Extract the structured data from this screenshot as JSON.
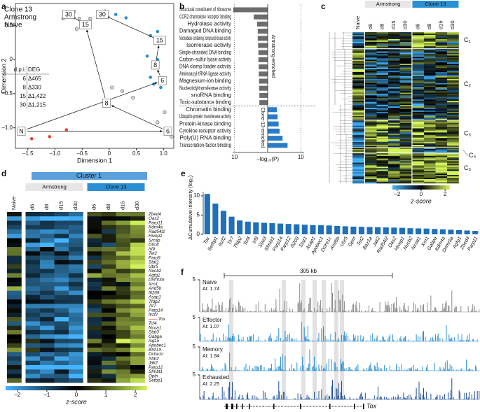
{
  "panel_labels": [
    "a",
    "b",
    "c",
    "d",
    "e",
    "f"
  ],
  "scatter": {
    "type": "scatter",
    "xlabel": "Dimension 1",
    "ylabel": "Dimension 2",
    "xlim": [
      -1.73,
      1.19
    ],
    "ylim": [
      -1.3,
      0.82
    ],
    "xticks": [
      {
        "value": -1.5,
        "label": "–1.5"
      },
      {
        "value": -1,
        "label": "–1.0"
      },
      {
        "value": -0.5,
        "label": "–0.5"
      },
      0,
      0.5,
      {
        "value": 1,
        "label": "1.0"
      }
    ],
    "yticks": [
      {
        "value": -1,
        "label": "–1.0"
      },
      {
        "value": -0.5,
        "label": "–0.5"
      },
      0,
      0.5
    ],
    "series": [
      {
        "name": "Clone 13",
        "color": "#2b8fd4",
        "x": [
          -0.08,
          0.12,
          0.31,
          0.76,
          0.89,
          0.7,
          0.89,
          0.76,
          0.82,
          0.95
        ],
        "values": [
          0.71,
          0.66,
          0.61,
          0.35,
          0.41,
          0.05,
          0.0,
          -0.26,
          -0.36,
          -0.41
        ],
        "centroids": [
          {
            "text": "6",
            "x": 0.98,
            "y": -0.31
          },
          {
            "text": "8",
            "x": 0.85,
            "y": -0.08
          },
          {
            "text": "15",
            "x": 0.93,
            "y": 0.28
          },
          {
            "text": "30",
            "x": -0.13,
            "y": 0.66
          }
        ]
      },
      {
        "name": "Armstrong",
        "color": "#8c8c8c",
        "x": [
          -0.85,
          -0.65,
          -0.55,
          -0.6,
          -0.35,
          0.24,
          0.05,
          0.44,
          1.02,
          1.15,
          0.89
        ],
        "values": [
          0.6,
          0.7,
          0.6,
          0.45,
          0.6,
          -0.46,
          -0.41,
          -0.56,
          -0.77,
          -1.13,
          -0.92
        ],
        "centroids": [
          {
            "text": "6",
            "x": 1.08,
            "y": -1.05
          },
          {
            "text": "8",
            "x": -0.05,
            "y": -0.64
          },
          {
            "text": "15",
            "x": -0.44,
            "y": 0.51
          },
          {
            "text": "30",
            "x": -0.75,
            "y": 0.66
          }
        ]
      },
      {
        "name": "Naive",
        "color": "#e8412c",
        "x": [
          -1.43,
          -1.1,
          -0.79
        ],
        "values": [
          -1.16,
          -1.13,
          -1.03
        ],
        "centroids": [
          {
            "text": "N",
            "x": -1.62,
            "y": -1.05
          }
        ]
      }
    ],
    "dpi_table": {
      "header": [
        "d.p.i.",
        "DEG"
      ],
      "rows": [
        [
          "6",
          "Δ465"
        ],
        [
          "8",
          "Δ330"
        ],
        [
          "15",
          "Δ1,422"
        ],
        [
          "30",
          "Δ1,215"
        ]
      ]
    }
  },
  "go_bars": {
    "type": "bar",
    "xlabel": "−log₁₀(P)",
    "xlim": [
      0,
      11
    ],
    "xticks": [
      10
    ],
    "series": [
      {
        "name": "Armstrong-enriched",
        "color": "#6d6d6d",
        "categories": [
          "Structural constituent of ribosome",
          "CCR2 chemokine receptor binding",
          "Hydrolase activity",
          "Damaged DNA binding",
          "Nucleobase-containing compound kinase activity",
          "Isomerase activity",
          "Single-stranded DNA binding",
          "Carbon–sulfur lyase activity",
          "DNA clamp loader activity",
          "Aminoacyl-tRNA ligase activity",
          "Magnesium-ion binding",
          "Nucleotidyltransferase activity",
          "snoRNA binding",
          "Toxic-substance binding"
        ],
        "values": [
          10.4,
          4.2,
          3.2,
          3.0,
          3.0,
          2.9,
          2.8,
          2.8,
          2.7,
          2.7,
          2.6,
          2.6,
          2.5,
          2.5
        ]
      },
      {
        "name": "Clone-13-enriched",
        "color": "#2a7cc7",
        "categories": [
          "Chromatin binding",
          "Ubiquitin-protein transferase activity",
          "Protein-kinase binding",
          "Cytokine receptor activity",
          "Poly(U) RNA binding",
          "Transcription-factor binding"
        ],
        "values": [
          2.8,
          3.0,
          3.3,
          3.6,
          4.5,
          6.0
        ]
      }
    ],
    "highlight": {
      "series": 1,
      "indices": [
        0,
        5
      ],
      "color": "#e8412c"
    }
  },
  "heatmap_c": {
    "type": "heatmap",
    "columns": [
      "Naive",
      "d6",
      "d8",
      "d15",
      "d30",
      "d6",
      "d8",
      "d15",
      "d30"
    ],
    "column_groups": [
      "Armstrong",
      "Clone 13"
    ],
    "clusters": [
      "C₁",
      "C₂",
      "C₃",
      "C₄",
      "C₅"
    ],
    "colorbar_label": "z-score",
    "clim": [
      -2.4,
      2.4
    ],
    "colorbar_ticks": [
      {
        "value": -2,
        "label": "–2"
      },
      0,
      2
    ]
  },
  "heatmap_d": {
    "type": "heatmap",
    "title": "Cluster 1",
    "columns": [
      "Naive",
      "d6",
      "d8",
      "d15",
      "d30",
      "d6",
      "d8",
      "d15",
      "d30"
    ],
    "column_groups": [
      "Armstrong",
      "Clone 13"
    ],
    "genes": [
      "Zbed4",
      "Oas2",
      "Parp11",
      "Kdm4a",
      "Rad54l2",
      "Hivep1",
      "Srcap",
      "Dtx3l",
      "Irf9",
      "Tet2",
      "Parp9",
      "Stat1",
      "Ubr5",
      "Nucb2",
      "Agfg1",
      "Dnmt3a",
      "Xrn1",
      "Arid5b",
      "Ifi209",
      "Asap1",
      "Tfdp2",
      "Tlr7",
      "Parp14",
      "Ikzf2",
      "Tox",
      "Tcf4",
      "Ncoa1",
      "Stat3",
      "Gabpa",
      "Isg15",
      "Apobec1",
      "Baz1a",
      "Dclre1c",
      "Stat2",
      "Jak2",
      "Parp12",
      "Sfmbt1",
      "Optn",
      "Setbp1"
    ],
    "highlight": {
      "index": 24,
      "color": "#e8412c"
    },
    "colorbar_label": "z-score",
    "clim": [
      -2.4,
      2.4
    ],
    "colorbar_ticks": [
      {
        "value": -2,
        "label": "–2"
      },
      {
        "value": -1,
        "label": "–1"
      },
      0,
      1,
      2
    ]
  },
  "intensity_bars": {
    "type": "bar",
    "ylabel": "ΔCumulative intensity (log₂)",
    "color": "#1f6fb9",
    "ylim": [
      0,
      11
    ],
    "yticks": [
      0,
      5,
      10
    ],
    "categories": [
      "Tox",
      "Setbp1",
      "Ikzf2",
      "Tlr7",
      "Tfdp2",
      "Tcf4",
      "Irf9",
      "Stat3",
      "Sfmbt1",
      "Parp14",
      "Parp12",
      "Ifi209",
      "Stat1",
      "Asap1",
      "Apobec1",
      "Dclre1c",
      "Arid5b",
      "Ubr5",
      "Optn",
      "Tet2",
      "Baz1a",
      "Jak2",
      "Rad54l2",
      "Oas2",
      "Hivep1",
      "Nucb2",
      "Ncoa1",
      "Xrn1",
      "Gabpa",
      "Kdm4a",
      "Dnmt3a",
      "Agfg1",
      "Zbed4",
      "Parp11"
    ],
    "values": [
      10.5,
      8.0,
      6.1,
      4.6,
      3.6,
      3.3,
      3.1,
      3.0,
      2.9,
      2.8,
      2.7,
      2.6,
      2.5,
      2.4,
      2.35,
      2.3,
      2.2,
      2.1,
      2.0,
      1.95,
      1.9,
      1.85,
      1.8,
      1.75,
      1.7,
      1.6,
      1.55,
      1.5,
      1.4,
      1.3,
      1.2,
      1.1,
      1.0,
      0.9
    ],
    "highlight": {
      "index": 0,
      "color": "#e8412c"
    }
  },
  "tracks": {
    "scale_label": "305 kb",
    "yticks": [
      5
    ],
    "gene": "Tox",
    "items": [
      {
        "name": "Naive",
        "ai": "AI: 1.74",
        "color": "#8a8a8a",
        "ai_color": "#8a8a8a"
      },
      {
        "name": "Effector",
        "ai": "AI: 1.07",
        "color": "#2b8fd4",
        "ai_color": "#2b8fd4"
      },
      {
        "name": "Memory",
        "ai": "AI: 1.94",
        "color": "#2b8fd4",
        "ai_color": "#2b8fd4"
      },
      {
        "name": "Exhausted",
        "ai": "AI: 2.25",
        "color": "#1f4f96",
        "ai_color": "#e8412c"
      }
    ]
  }
}
